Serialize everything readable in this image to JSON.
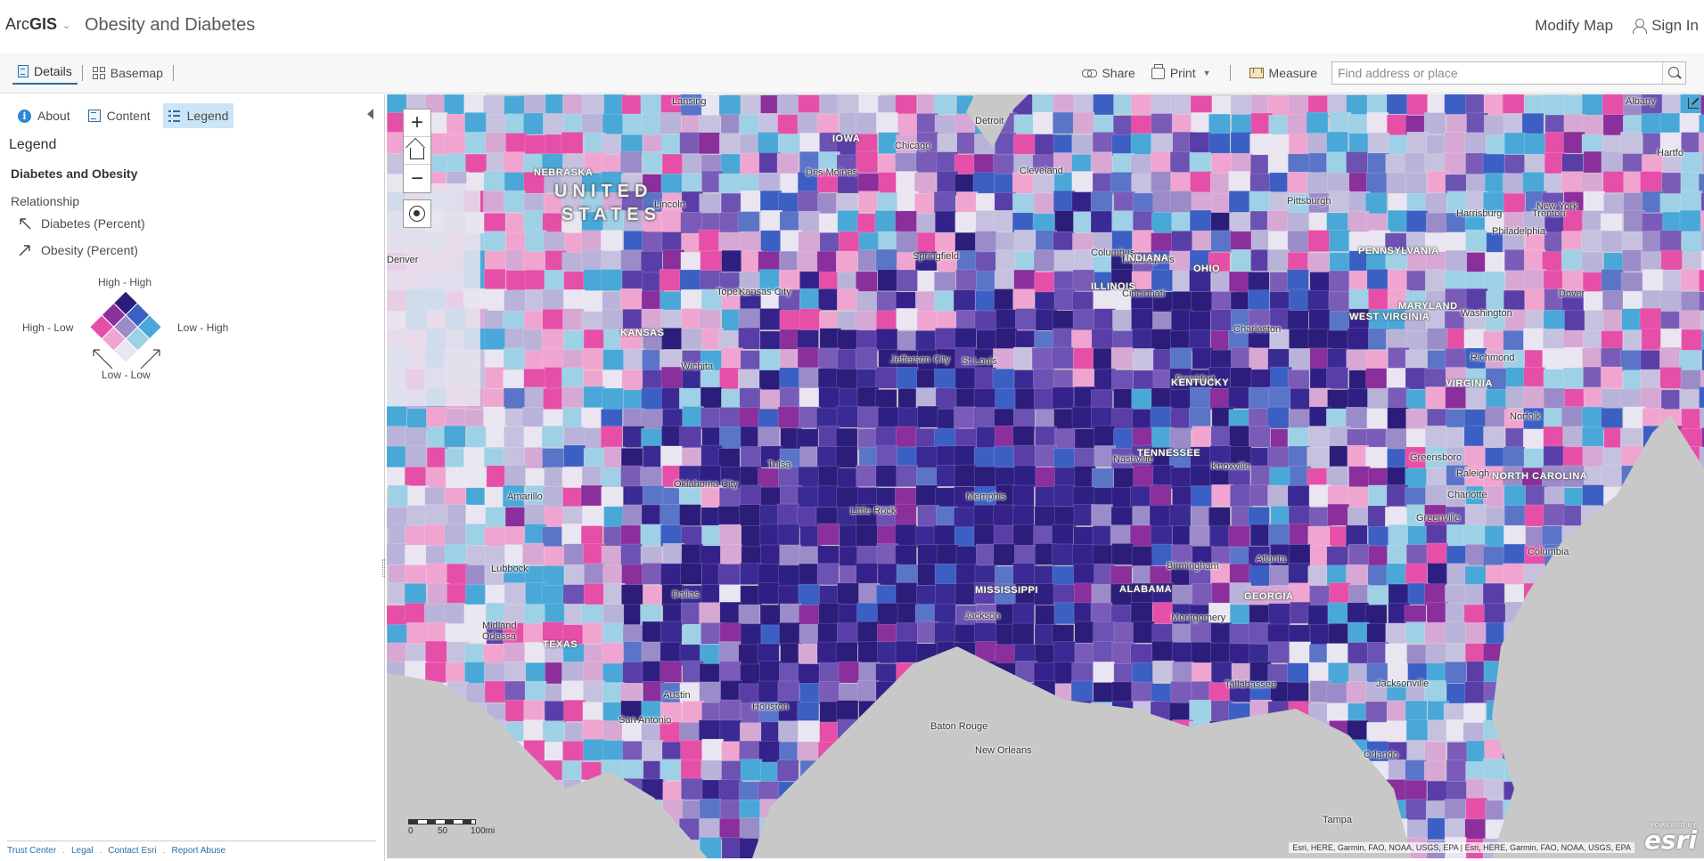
{
  "header": {
    "brand_light": "Arc",
    "brand_bold": "GIS",
    "map_title": "Obesity and Diabetes",
    "modify_map": "Modify Map",
    "sign_in": "Sign In"
  },
  "toolbar": {
    "details": "Details",
    "basemap": "Basemap",
    "share": "Share",
    "print": "Print",
    "measure": "Measure",
    "search_placeholder": "Find address or place"
  },
  "panel": {
    "tabs": {
      "about": "About",
      "content": "Content",
      "legend": "Legend"
    },
    "legend_heading": "Legend",
    "layer_title": "Diabetes and Obesity",
    "relationship_label": "Relationship",
    "field_1": "Diabetes (Percent)",
    "field_2": "Obesity (Percent)",
    "legend_labels": {
      "top": "High - High",
      "left": "High - Low",
      "right": "Low - High",
      "bottom": "Low - Low"
    },
    "footer": [
      "Trust Center",
      "Legal",
      "Contact Esri",
      "Report Abuse"
    ]
  },
  "legend_colors": [
    [
      "#2c1d7a",
      "#3c5fc4",
      "#49a8d8"
    ],
    [
      "#8a2f9c",
      "#9b8cc9",
      "#9ed0e6"
    ],
    [
      "#e64fa8",
      "#f0a5d0",
      "#e9e6f2"
    ]
  ],
  "map": {
    "zoom_in": "+",
    "zoom_out": "−",
    "country": [
      "UNITED",
      "STATES"
    ],
    "cities": [
      "Lansing",
      "Detroit",
      "Chicago",
      "Cleveland",
      "Des Moines",
      "Lincoln",
      "Pittsburgh",
      "Harrisburg",
      "Trenton",
      "Philadelphia",
      "New York",
      "Albany",
      "Hartfo",
      "Dover",
      "Columbus",
      "Springfield",
      "Indianapolis",
      "Topeka",
      "Kansas City",
      "Jefferson City",
      "St Louis",
      "Cincinnati",
      "Washington",
      "Charleston",
      "Wichita",
      "Frankfort",
      "Richmond",
      "Norfolk",
      "Nashville",
      "Knoxville",
      "Greensboro",
      "Raleigh",
      "Tulsa",
      "Oklahoma City",
      "Amarillo",
      "Little Rock",
      "Memphis",
      "Charlotte",
      "Greenville",
      "Lubbock",
      "Dallas",
      "Birmingham",
      "Atlanta",
      "Columbia",
      "Jackson",
      "Montgomery",
      "Midland",
      "Odessa",
      "Austin",
      "Houston",
      "San Antonio",
      "Baton Rouge",
      "New Orleans",
      "Tallahassee",
      "Jacksonville",
      "Orlando",
      "Tampa",
      "Denver"
    ],
    "states": [
      "NEBRASKA",
      "IOWA",
      "ILLINOIS",
      "INDIANA",
      "OHIO",
      "PENNSYLVANIA",
      "MARYLAND",
      "KANSAS",
      "WEST VIRGINIA",
      "KENTUCKY",
      "VIRGINIA",
      "TENNESSEE",
      "NORTH CAROLINA",
      "MISSISSIPPI",
      "ALABAMA",
      "GEORGIA",
      "TEXAS"
    ],
    "scale_labels": [
      "0",
      "50",
      "100mi"
    ],
    "attribution": "Esri, HERE, Garmin, FAO, NOAA, USGS, EPA | Esri, HERE, Garmin, FAO, NOAA, USGS, EPA",
    "powered_by": "POWERED BY",
    "esri": "esri"
  }
}
